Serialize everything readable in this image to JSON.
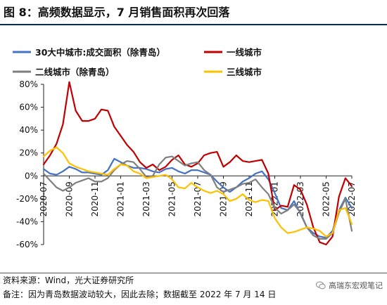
{
  "title": "图 8：高频数据显示，7 月销售面积再次回落",
  "source": "资料来源：Wind，光大证券研究所",
  "note": "备注：因为青岛数据波动较大，因此去除；数据截至 2022 年 7 月 14 日",
  "watermark": "高瑞东宏观笔记",
  "watermark_icon": "wechat-icon",
  "chart_data": {
    "type": "line",
    "title": "",
    "xlabel": "",
    "ylabel": "",
    "ylim": [
      -60,
      80
    ],
    "yticks": [
      "80%",
      "60%",
      "40%",
      "20%",
      "0%",
      "-20%",
      "-40%",
      "-60%"
    ],
    "xlim": [
      0,
      24
    ],
    "xticks": [
      {
        "x": 0,
        "label": "2020-07"
      },
      {
        "x": 2,
        "label": "2020-09"
      },
      {
        "x": 4,
        "label": "2020-11"
      },
      {
        "x": 6,
        "label": "2021-01"
      },
      {
        "x": 8,
        "label": "2021-03"
      },
      {
        "x": 10,
        "label": "2021-05"
      },
      {
        "x": 12,
        "label": "2021-07"
      },
      {
        "x": 14,
        "label": "2021-09"
      },
      {
        "x": 16,
        "label": "2021-11"
      },
      {
        "x": 18,
        "label": "2022-01"
      },
      {
        "x": 20,
        "label": "2022-03"
      },
      {
        "x": 22,
        "label": "2022-05"
      },
      {
        "x": 24,
        "label": "2022-07"
      }
    ],
    "legend_position": "top",
    "grid": false,
    "series": [
      {
        "name": "30大中城市:成交面积（除青岛）",
        "color": "#4472C4",
        "points": [
          [
            0,
            6
          ],
          [
            0.5,
            2
          ],
          [
            1,
            1
          ],
          [
            1.5,
            4
          ],
          [
            2,
            8
          ],
          [
            2.5,
            6
          ],
          [
            3,
            3
          ],
          [
            3.5,
            3
          ],
          [
            4,
            2
          ],
          [
            4.5,
            1
          ],
          [
            5,
            5
          ],
          [
            5.5,
            15
          ],
          [
            6,
            12
          ],
          [
            6.5,
            9
          ],
          [
            7,
            7
          ],
          [
            7.5,
            7
          ],
          [
            8,
            6
          ],
          [
            8.5,
            4
          ],
          [
            9,
            3
          ],
          [
            9.5,
            6
          ],
          [
            10,
            7
          ],
          [
            10.5,
            4
          ],
          [
            11,
            2
          ],
          [
            11.5,
            5
          ],
          [
            12,
            5
          ],
          [
            12.5,
            3
          ],
          [
            13,
            1
          ],
          [
            13.5,
            -5
          ],
          [
            14,
            -10
          ],
          [
            14.5,
            -14
          ],
          [
            15,
            -10
          ],
          [
            15.5,
            -5
          ],
          [
            16,
            -2
          ],
          [
            16.5,
            2
          ],
          [
            17,
            4
          ],
          [
            17.5,
            -3
          ],
          [
            18,
            -15
          ],
          [
            18.5,
            -28
          ],
          [
            19,
            -30
          ],
          [
            19.5,
            -22
          ],
          [
            20,
            -33
          ],
          [
            20.5,
            -45
          ],
          [
            21,
            -50
          ],
          [
            21.5,
            -53
          ],
          [
            22,
            -54
          ],
          [
            22.5,
            -48
          ],
          [
            23,
            -30
          ],
          [
            23.5,
            -19
          ],
          [
            24,
            -28
          ]
        ]
      },
      {
        "name": "一线城市",
        "color": "#C00000",
        "points": [
          [
            0,
            10
          ],
          [
            0.5,
            18
          ],
          [
            1,
            28
          ],
          [
            1.5,
            45
          ],
          [
            2,
            82
          ],
          [
            2.5,
            57
          ],
          [
            3,
            48
          ],
          [
            3.5,
            48
          ],
          [
            4,
            50
          ],
          [
            4.5,
            58
          ],
          [
            5,
            57
          ],
          [
            5.5,
            43
          ],
          [
            6,
            35
          ],
          [
            6.5,
            27
          ],
          [
            7,
            21
          ],
          [
            7.5,
            12
          ],
          [
            8,
            7
          ],
          [
            8.5,
            10
          ],
          [
            9,
            5
          ],
          [
            9.5,
            8
          ],
          [
            10,
            14
          ],
          [
            10.5,
            18
          ],
          [
            11,
            10
          ],
          [
            11.5,
            8
          ],
          [
            12,
            11
          ],
          [
            12.5,
            18
          ],
          [
            13,
            20
          ],
          [
            13.5,
            21
          ],
          [
            14,
            8
          ],
          [
            14.5,
            12
          ],
          [
            15,
            18
          ],
          [
            15.5,
            13
          ],
          [
            16,
            12
          ],
          [
            16.5,
            13
          ],
          [
            17,
            14
          ],
          [
            17.5,
            2
          ],
          [
            18,
            -30
          ],
          [
            18.5,
            -26
          ],
          [
            19,
            -27
          ],
          [
            19.5,
            -8
          ],
          [
            20,
            -12
          ],
          [
            20.5,
            -25
          ],
          [
            21,
            -45
          ],
          [
            21.5,
            -58
          ],
          [
            22,
            -60
          ],
          [
            22.5,
            -53
          ],
          [
            23,
            -18
          ],
          [
            23.5,
            -2
          ],
          [
            24,
            -9
          ]
        ]
      },
      {
        "name": "二线城市（除青岛）",
        "color": "#7F7F7F",
        "points": [
          [
            0,
            2
          ],
          [
            0.5,
            -4
          ],
          [
            1,
            -10
          ],
          [
            1.5,
            -13
          ],
          [
            2,
            -10
          ],
          [
            2.5,
            -6
          ],
          [
            3,
            -4
          ],
          [
            3.5,
            -2
          ],
          [
            4,
            -5
          ],
          [
            4.5,
            -5
          ],
          [
            5,
            -2
          ],
          [
            5.5,
            5
          ],
          [
            6,
            10
          ],
          [
            6.5,
            13
          ],
          [
            7,
            12
          ],
          [
            7.5,
            6
          ],
          [
            8,
            -1
          ],
          [
            8.5,
            0
          ],
          [
            9,
            10
          ],
          [
            9.5,
            16
          ],
          [
            10,
            17
          ],
          [
            10.5,
            13
          ],
          [
            11,
            9
          ],
          [
            11.5,
            11
          ],
          [
            12,
            12
          ],
          [
            12.5,
            5
          ],
          [
            13,
            1
          ],
          [
            13.5,
            -10
          ],
          [
            14,
            -14
          ],
          [
            14.5,
            -12
          ],
          [
            15,
            -10
          ],
          [
            15.5,
            -7
          ],
          [
            16,
            -6
          ],
          [
            16.5,
            -3
          ],
          [
            17,
            -10
          ],
          [
            17.5,
            -16
          ],
          [
            18,
            -28
          ],
          [
            18.5,
            -33
          ],
          [
            19,
            -30
          ],
          [
            19.5,
            -25
          ],
          [
            20,
            -32
          ],
          [
            20.5,
            -45
          ],
          [
            21,
            -52
          ],
          [
            21.5,
            -55
          ],
          [
            22,
            -55
          ],
          [
            22.5,
            -50
          ],
          [
            23,
            -32
          ],
          [
            23.5,
            -20
          ],
          [
            24,
            -48
          ]
        ]
      },
      {
        "name": "三线城市",
        "color": "#FFC000",
        "points": [
          [
            0,
            17
          ],
          [
            0.5,
            22
          ],
          [
            1,
            25
          ],
          [
            1.5,
            20
          ],
          [
            2,
            11
          ],
          [
            2.5,
            8
          ],
          [
            3,
            6
          ],
          [
            3.5,
            4
          ],
          [
            4,
            3
          ],
          [
            4.5,
            2
          ],
          [
            5,
            1
          ],
          [
            5.5,
            6
          ],
          [
            6,
            10
          ],
          [
            6.5,
            9
          ],
          [
            7,
            4
          ],
          [
            7.5,
            2
          ],
          [
            8,
            -2
          ],
          [
            8.5,
            -1
          ],
          [
            9,
            0
          ],
          [
            9.5,
            1
          ],
          [
            10,
            -3
          ],
          [
            10.5,
            -10
          ],
          [
            11,
            -11
          ],
          [
            11.5,
            -6
          ],
          [
            12,
            -10
          ],
          [
            12.5,
            -13
          ],
          [
            13,
            -15
          ],
          [
            13.5,
            -13
          ],
          [
            14,
            -16
          ],
          [
            14.5,
            -22
          ],
          [
            15,
            -20
          ],
          [
            15.5,
            -16
          ],
          [
            16,
            -21
          ],
          [
            16.5,
            -23
          ],
          [
            17,
            -21
          ],
          [
            17.5,
            -22
          ],
          [
            18,
            -37
          ],
          [
            18.5,
            -45
          ],
          [
            19,
            -50
          ],
          [
            19.5,
            -49
          ],
          [
            20,
            -47
          ],
          [
            20.5,
            -45
          ],
          [
            21,
            -46
          ],
          [
            21.5,
            -48
          ],
          [
            22,
            -53
          ],
          [
            22.5,
            -50
          ],
          [
            23,
            -30
          ],
          [
            23.5,
            -28
          ],
          [
            24,
            -42
          ]
        ]
      }
    ]
  }
}
